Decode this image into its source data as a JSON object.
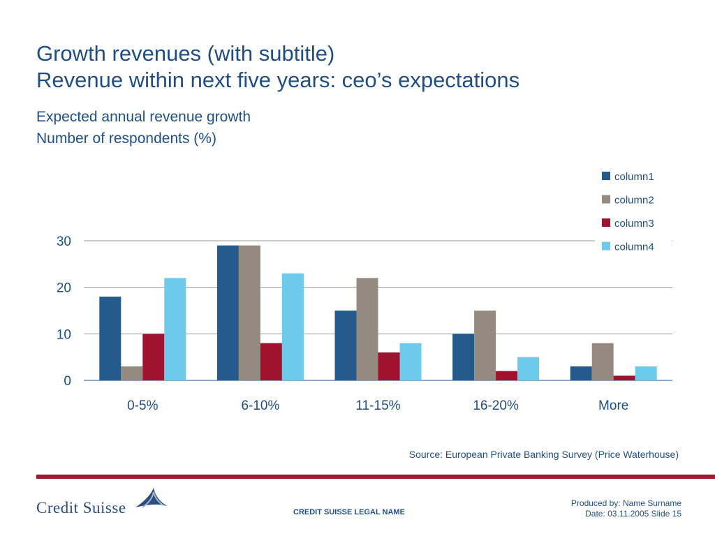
{
  "slide": {
    "title_line1": "Growth revenues (with subtitle)",
    "title_line2": "Revenue within next five years: ceo’s expectations",
    "subtitle_line1": "Expected annual revenue growth",
    "subtitle_line2": "Number of respondents (%)",
    "source": "Source: European Private Banking Survey (Price Waterhouse)"
  },
  "footer": {
    "logo_text": "Credit Suisse",
    "legal_name": "CREDIT SUISSE LEGAL NAME",
    "produced_by": "Produced by: Name Surname",
    "date_slide": "Date: 03.11.2005 Slide 15"
  },
  "colors": {
    "title": "#1f4e85",
    "accent_bar": "#a0182e"
  },
  "chart_data": {
    "type": "bar",
    "categories": [
      "0-5%",
      "6-10%",
      "11-15%",
      "16-20%",
      "More"
    ],
    "series": [
      {
        "name": "column1",
        "color": "#245b8c",
        "values": [
          18,
          29,
          15,
          10,
          3
        ]
      },
      {
        "name": "column2",
        "color": "#948a80",
        "values": [
          3,
          29,
          22,
          15,
          8
        ]
      },
      {
        "name": "column3",
        "color": "#a0122e",
        "values": [
          10,
          8,
          6,
          2,
          1
        ]
      },
      {
        "name": "column4",
        "color": "#6dcaea",
        "values": [
          22,
          23,
          8,
          5,
          3
        ]
      }
    ],
    "yticks": [
      0,
      10,
      20,
      30
    ],
    "ylim": [
      0,
      30
    ],
    "grid": true,
    "legend": "top-right"
  }
}
